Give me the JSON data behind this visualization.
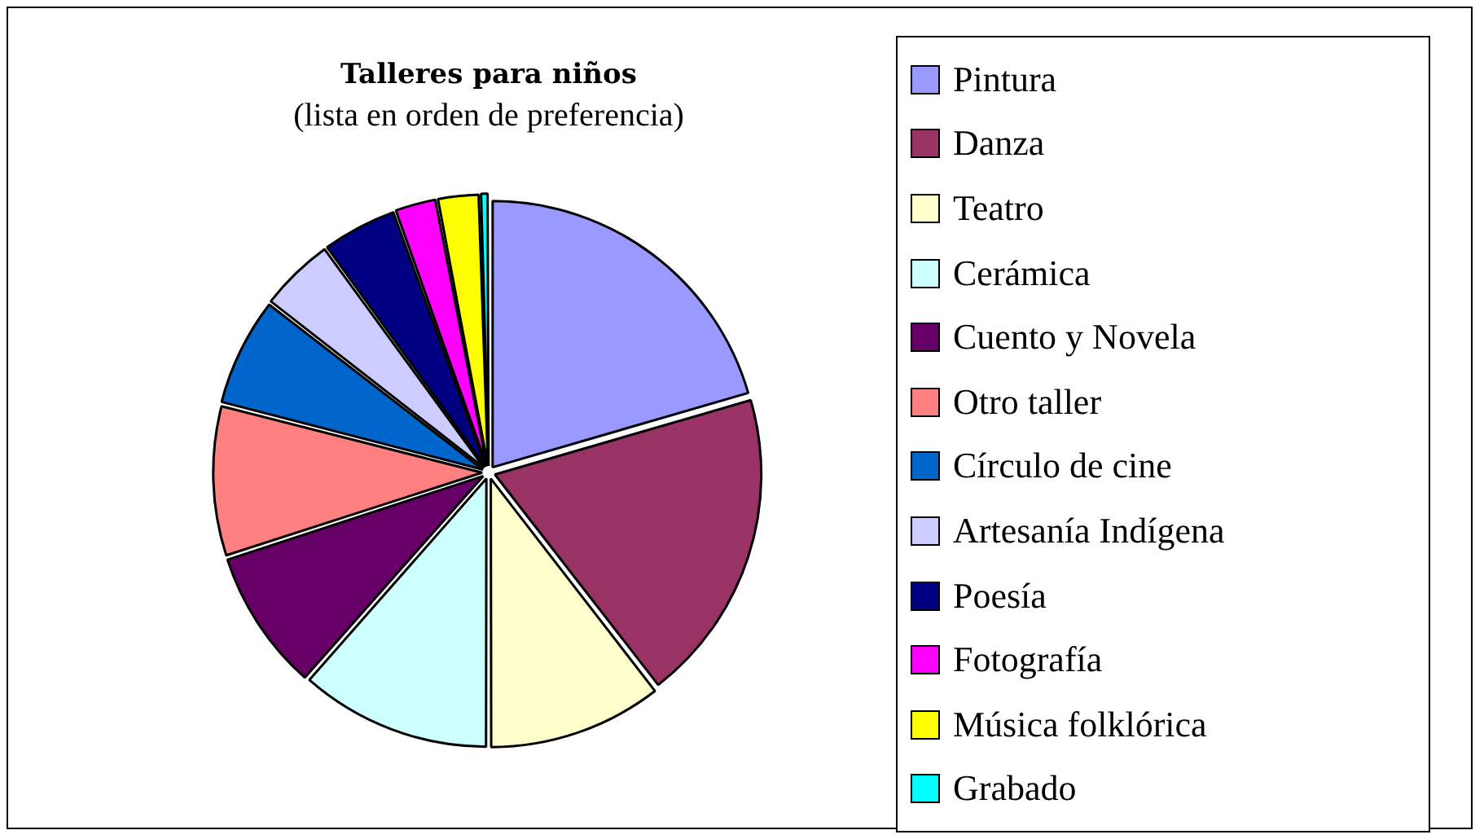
{
  "chart_data": {
    "type": "pie",
    "title": "Talleres para niños",
    "subtitle": "(lista en orden de preferencia)",
    "categories": [
      "Pintura",
      "Danza",
      "Teatro",
      "Cerámica",
      "Cuento y Novela",
      "Otro taller",
      "Círculo de cine",
      "Artesanía Indígena",
      "Poesía",
      "Fotografía",
      "Música folklórica",
      "Grabado"
    ],
    "values": [
      20.5,
      19,
      10.5,
      11.5,
      8.5,
      9,
      6.5,
      4.5,
      4.5,
      2.5,
      2.5,
      0.5
    ],
    "colors": [
      "#9999ff",
      "#993366",
      "#ffffcc",
      "#ccffff",
      "#660066",
      "#ff8080",
      "#0066cc",
      "#ccccff",
      "#000080",
      "#ff00ff",
      "#ffff00",
      "#00ffff"
    ],
    "legend": "right"
  }
}
